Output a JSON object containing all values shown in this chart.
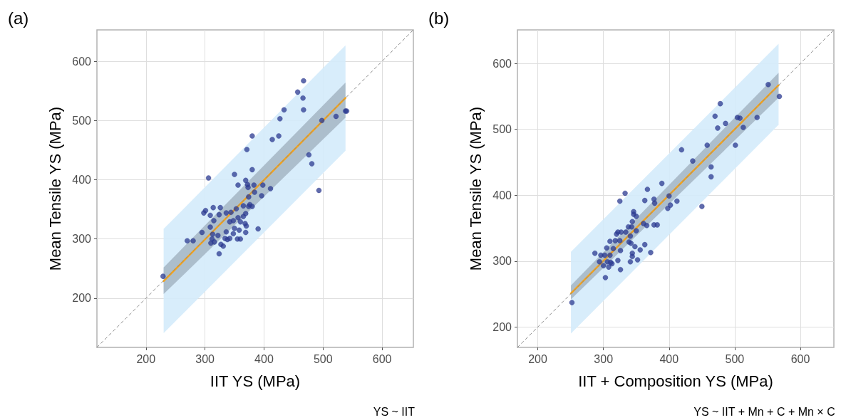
{
  "chart_data": [
    {
      "type": "scatter",
      "title": "(a)",
      "xlabel": "IIT YS (MPa)",
      "ylabel": "Mean Tensile YS (MPa)",
      "annotations": [
        "YS ~ IIT"
      ],
      "xlim": [
        117,
        653
      ],
      "ylim": [
        117,
        653
      ],
      "xticks": [
        200,
        300,
        400,
        500,
        600
      ],
      "yticks": [
        200,
        300,
        400,
        500,
        600
      ],
      "grid": true,
      "series": [
        {
          "type": "line",
          "color": "#d4ebfb",
          "x": [
            230,
            538
          ],
          "values": [
            null,
            null
          ],
          "lower": [
            141,
            449
          ],
          "upper": [
            317,
            627
          ]
        },
        {
          "type": "line",
          "color": "#a7b8c6",
          "x": [
            230,
            538
          ],
          "values": [
            null,
            null
          ],
          "lower": [
            207,
            505
          ],
          "upper": [
            252,
            564
          ]
        },
        {
          "type": "line",
          "color": "#f5a31a",
          "x": [
            230,
            538
          ],
          "values": [
            229,
            538
          ]
        },
        {
          "type": "line",
          "color": "#8c8c8c",
          "line_style": "dashed",
          "x": [
            117,
            653
          ],
          "values": [
            117,
            653
          ]
        },
        {
          "marker": "circle",
          "color": "#2b3990",
          "x": [
            229,
            270,
            280,
            295,
            298,
            301,
            306,
            309,
            309,
            310,
            312,
            313,
            314,
            315,
            316,
            322,
            324,
            324,
            326,
            327,
            331,
            334,
            336,
            336,
            338,
            342,
            342,
            344,
            348,
            348,
            350,
            350,
            353,
            355,
            356,
            356,
            360,
            360,
            358,
            365,
            365,
            368,
            369,
            369,
            370,
            369,
            371,
            372,
            373,
            374,
            374,
            376,
            380,
            380,
            380,
            383,
            384,
            390,
            396,
            398,
            411,
            414,
            425,
            427,
            434,
            457,
            466,
            467,
            467,
            476,
            481,
            493,
            498,
            522,
            538,
            540
          ],
          "values": [
            237,
            297,
            297,
            311,
            344,
            348,
            403,
            340,
            320,
            293,
            300,
            308,
            353,
            331,
            295,
            306,
            341,
            275,
            353,
            291,
            288,
            301,
            344,
            312,
            299,
            301,
            329,
            345,
            331,
            309,
            409,
            318,
            351,
            300,
            391,
            336,
            300,
            329,
            315,
            356,
            338,
            326,
            399,
            343,
            322,
            311,
            451,
            392,
            387,
            371,
            355,
            358,
            355,
            417,
            474,
            391,
            379,
            317,
            373,
            391,
            385,
            468,
            474,
            503,
            518,
            548,
            538,
            567,
            518,
            442,
            427,
            382,
            500,
            507,
            516,
            516
          ]
        }
      ]
    },
    {
      "type": "scatter",
      "title": "(b)",
      "xlabel": "IIT + Composition YS (MPa)",
      "ylabel": "Mean Tensile YS (MPa)",
      "annotations": [
        "YS ~ IIT + Mn + C + Mn × C"
      ],
      "xlim": [
        169,
        651
      ],
      "ylim": [
        169,
        651
      ],
      "xticks": [
        200,
        300,
        400,
        500,
        600
      ],
      "yticks": [
        200,
        300,
        400,
        500,
        600
      ],
      "grid": true,
      "series": [
        {
          "type": "line",
          "color": "#d4ebfb",
          "x": [
            250.5,
            566.8
          ],
          "values": [
            null,
            null
          ],
          "lower": [
            190,
            507
          ],
          "upper": [
            314,
            630
          ]
        },
        {
          "type": "line",
          "color": "#a7b8c6",
          "x": [
            250.5,
            566.8
          ],
          "values": [
            null,
            null
          ],
          "lower": [
            242,
            548
          ],
          "upper": [
            263,
            586
          ]
        },
        {
          "type": "line",
          "color": "#f5a31a",
          "x": [
            250.5,
            566.8
          ],
          "values": [
            251,
            567
          ]
        },
        {
          "type": "line",
          "color": "#8c8c8c",
          "line_style": "dashed",
          "x": [
            169,
            651
          ],
          "values": [
            169,
            651
          ]
        },
        {
          "marker": "circle",
          "color": "#2b3990",
          "x": [
            252,
            287,
            294,
            296,
            300,
            302,
            303,
            305,
            306,
            308,
            310,
            310,
            311,
            313,
            315,
            318,
            320,
            322,
            322,
            325,
            326,
            326,
            327,
            325,
            333,
            334,
            338,
            339,
            341,
            341,
            342,
            343,
            344,
            344,
            344,
            346,
            346,
            348,
            350,
            350,
            352,
            356,
            361,
            363,
            363,
            366,
            367,
            372,
            377,
            378,
            377,
            382,
            389,
            398,
            400,
            402,
            412,
            419,
            436,
            450,
            458,
            464,
            464,
            470,
            474,
            478,
            486,
            501,
            504,
            508,
            513,
            534,
            551,
            568
          ],
          "values": [
            237,
            312,
            299,
            309,
            293,
            309,
            275,
            320,
            299,
            291,
            330,
            309,
            298,
            296,
            319,
            331,
            341,
            301,
            344,
            331,
            316,
            287,
            344,
            391,
            403,
            344,
            352,
            329,
            338,
            299,
            327,
            352,
            360,
            312,
            307,
            375,
            371,
            322,
            368,
            346,
            302,
            317,
            357,
            392,
            325,
            354,
            409,
            313,
            394,
            388,
            355,
            355,
            418,
            380,
            399,
            385,
            391,
            469,
            452,
            383,
            476,
            443,
            428,
            520,
            502,
            539,
            509,
            476,
            518,
            517,
            503,
            518,
            568,
            550
          ]
        }
      ]
    }
  ]
}
